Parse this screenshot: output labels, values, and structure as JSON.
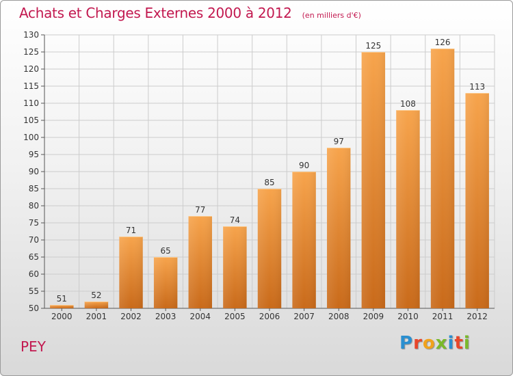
{
  "header": {
    "title": "Achats et Charges Externes 2000 à 2012",
    "subtitle": "(en milliers d'€)"
  },
  "footer": {
    "town": "PEY",
    "logo": "Proxiti"
  },
  "colors": {
    "bar_top": "#f7a44c",
    "bar_bottom": "#c96a1a",
    "title": "#c2184f",
    "grid": "#cccccc"
  },
  "chart_data": {
    "type": "bar",
    "categories": [
      "2000",
      "2001",
      "2002",
      "2003",
      "2004",
      "2005",
      "2006",
      "2007",
      "2008",
      "2009",
      "2010",
      "2011",
      "2012"
    ],
    "values": [
      51,
      52,
      71,
      65,
      77,
      74,
      85,
      90,
      97,
      125,
      108,
      126,
      113
    ],
    "title": "Achats et Charges Externes 2000 à 2012",
    "subtitle": "(en milliers d'€)",
    "xlabel": "",
    "ylabel": "",
    "ylim": [
      50,
      130
    ],
    "ytick_step": 5,
    "grid": true,
    "legend": "none"
  }
}
